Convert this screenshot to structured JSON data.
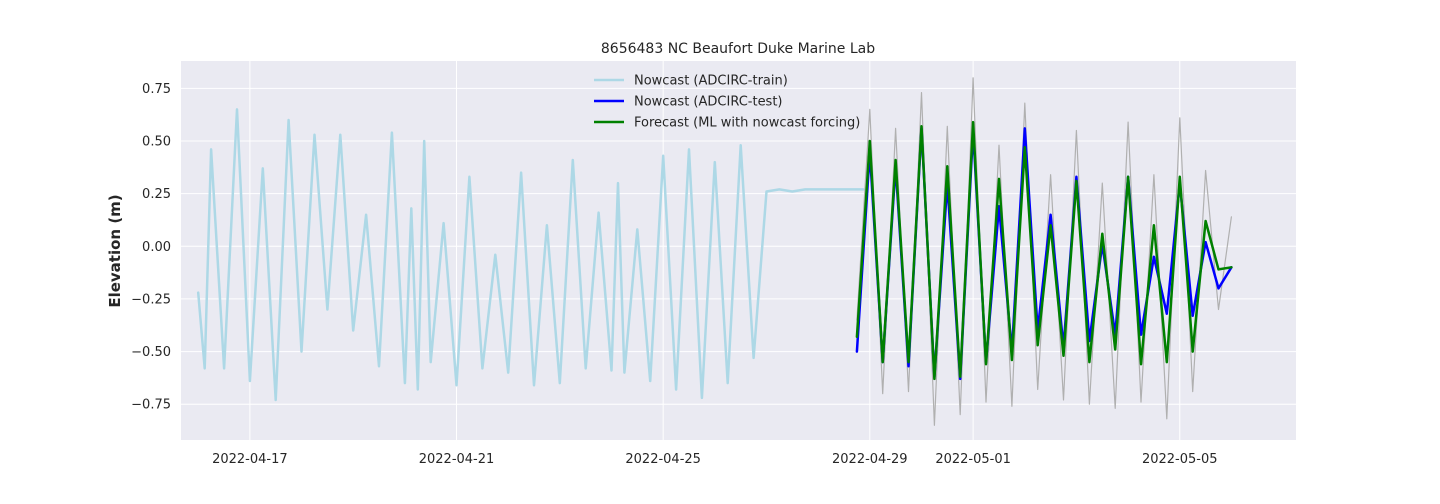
{
  "chart_data": {
    "type": "line",
    "title": "8656483 NC Beaufort Duke Marine Lab",
    "xlabel": "",
    "ylabel": "Elevation (m)",
    "xlim": [
      "2022-04-15 16:00",
      "2022-05-07 06:00"
    ],
    "ylim": [
      -0.92,
      0.88
    ],
    "x_ticks": [
      "2022-04-17",
      "2022-04-21",
      "2022-04-25",
      "2022-04-29",
      "2022-05-01",
      "2022-05-05"
    ],
    "y_ticks": [
      -0.75,
      -0.5,
      -0.25,
      0.0,
      0.25,
      0.5,
      0.75
    ],
    "y_tick_labels": [
      "−0.75",
      "−0.50",
      "−0.25",
      "0.00",
      "0.25",
      "0.50",
      "0.75"
    ],
    "grid": true,
    "legend_position": "top-center",
    "series": [
      {
        "name": "Nowcast (ADCIRC-train)",
        "color": "#add8e6",
        "width": 2.5,
        "x": [
          "2022-04-16 00:00",
          "2022-04-16 03:00",
          "2022-04-16 06:00",
          "2022-04-16 12:00",
          "2022-04-16 18:00",
          "2022-04-17 00:00",
          "2022-04-17 06:00",
          "2022-04-17 12:00",
          "2022-04-17 18:00",
          "2022-04-18 00:00",
          "2022-04-18 06:00",
          "2022-04-18 12:00",
          "2022-04-18 18:00",
          "2022-04-19 00:00",
          "2022-04-19 06:00",
          "2022-04-19 12:00",
          "2022-04-19 18:00",
          "2022-04-20 00:00",
          "2022-04-20 03:00",
          "2022-04-20 06:00",
          "2022-04-20 09:00",
          "2022-04-20 12:00",
          "2022-04-20 18:00",
          "2022-04-21 00:00",
          "2022-04-21 06:00",
          "2022-04-21 12:00",
          "2022-04-21 18:00",
          "2022-04-22 00:00",
          "2022-04-22 06:00",
          "2022-04-22 12:00",
          "2022-04-22 18:00",
          "2022-04-23 00:00",
          "2022-04-23 06:00",
          "2022-04-23 12:00",
          "2022-04-23 18:00",
          "2022-04-24 00:00",
          "2022-04-24 03:00",
          "2022-04-24 06:00",
          "2022-04-24 12:00",
          "2022-04-24 18:00",
          "2022-04-25 00:00",
          "2022-04-25 06:00",
          "2022-04-25 12:00",
          "2022-04-25 18:00",
          "2022-04-26 00:00",
          "2022-04-26 06:00",
          "2022-04-26 12:00",
          "2022-04-26 18:00",
          "2022-04-27 00:00",
          "2022-04-27 06:00",
          "2022-04-27 12:00",
          "2022-04-27 18:00",
          "2022-04-28 00:00",
          "2022-04-28 06:00",
          "2022-04-28 12:00",
          "2022-04-28 18:00",
          "2022-04-28 21:00"
        ],
        "y": [
          -0.22,
          -0.58,
          0.46,
          -0.58,
          0.65,
          -0.64,
          0.37,
          -0.73,
          0.6,
          -0.5,
          0.53,
          -0.3,
          0.53,
          -0.4,
          0.15,
          -0.57,
          0.54,
          -0.65,
          0.18,
          -0.68,
          0.5,
          -0.55,
          0.11,
          -0.66,
          0.33,
          -0.58,
          -0.04,
          -0.6,
          0.35,
          -0.66,
          0.1,
          -0.65,
          0.41,
          -0.58,
          0.16,
          -0.59,
          0.3,
          -0.6,
          0.08,
          -0.64,
          0.43,
          -0.68,
          0.46,
          -0.72,
          0.4,
          -0.65,
          0.48,
          -0.53,
          0.26,
          0.27,
          0.26,
          0.27,
          0.27,
          0.27,
          0.27,
          0.27,
          0.27
        ]
      },
      {
        "name": "",
        "color": "#b0b0b0",
        "width": 1.2,
        "x": [
          "2022-04-28 18:00",
          "2022-04-29 00:00",
          "2022-04-29 06:00",
          "2022-04-29 12:00",
          "2022-04-29 18:00",
          "2022-04-30 00:00",
          "2022-04-30 06:00",
          "2022-04-30 12:00",
          "2022-04-30 18:00",
          "2022-05-01 00:00",
          "2022-05-01 06:00",
          "2022-05-01 12:00",
          "2022-05-01 18:00",
          "2022-05-02 00:00",
          "2022-05-02 06:00",
          "2022-05-02 12:00",
          "2022-05-02 18:00",
          "2022-05-03 00:00",
          "2022-05-03 06:00",
          "2022-05-03 12:00",
          "2022-05-03 18:00",
          "2022-05-04 00:00",
          "2022-05-04 06:00",
          "2022-05-04 12:00",
          "2022-05-04 18:00",
          "2022-05-05 00:00",
          "2022-05-05 06:00",
          "2022-05-05 12:00",
          "2022-05-05 18:00",
          "2022-05-06 00:00"
        ],
        "y": [
          -0.35,
          0.65,
          -0.7,
          0.56,
          -0.69,
          0.73,
          -0.85,
          0.57,
          -0.8,
          0.8,
          -0.74,
          0.48,
          -0.76,
          0.68,
          -0.68,
          0.34,
          -0.73,
          0.55,
          -0.75,
          0.3,
          -0.77,
          0.59,
          -0.74,
          0.34,
          -0.82,
          0.61,
          -0.69,
          0.36,
          -0.3,
          0.14
        ]
      },
      {
        "name": "Nowcast (ADCIRC-test)",
        "color": "#0000ff",
        "width": 2.5,
        "x": [
          "2022-04-28 18:00",
          "2022-04-29 00:00",
          "2022-04-29 06:00",
          "2022-04-29 12:00",
          "2022-04-29 18:00",
          "2022-04-30 00:00",
          "2022-04-30 06:00",
          "2022-04-30 12:00",
          "2022-04-30 18:00",
          "2022-05-01 00:00",
          "2022-05-01 06:00",
          "2022-05-01 12:00",
          "2022-05-01 18:00",
          "2022-05-02 00:00",
          "2022-05-02 06:00",
          "2022-05-02 12:00",
          "2022-05-02 18:00",
          "2022-05-03 00:00",
          "2022-05-03 06:00",
          "2022-05-03 12:00",
          "2022-05-03 18:00",
          "2022-05-04 00:00",
          "2022-05-04 06:00",
          "2022-05-04 12:00",
          "2022-05-04 18:00",
          "2022-05-05 00:00",
          "2022-05-05 06:00",
          "2022-05-05 12:00",
          "2022-05-05 18:00",
          "2022-05-06 00:00"
        ],
        "y": [
          -0.5,
          0.45,
          -0.55,
          0.38,
          -0.57,
          0.56,
          -0.62,
          0.3,
          -0.63,
          0.55,
          -0.55,
          0.19,
          -0.5,
          0.56,
          -0.4,
          0.15,
          -0.48,
          0.33,
          -0.45,
          0.01,
          -0.42,
          0.33,
          -0.42,
          -0.05,
          -0.32,
          0.3,
          -0.33,
          0.02,
          -0.2,
          -0.1
        ]
      },
      {
        "name": "Forecast (ML with nowcast forcing)",
        "color": "#008000",
        "width": 2.5,
        "x": [
          "2022-04-28 18:00",
          "2022-04-29 00:00",
          "2022-04-29 06:00",
          "2022-04-29 12:00",
          "2022-04-29 18:00",
          "2022-04-30 00:00",
          "2022-04-30 06:00",
          "2022-04-30 12:00",
          "2022-04-30 18:00",
          "2022-05-01 00:00",
          "2022-05-01 06:00",
          "2022-05-01 12:00",
          "2022-05-01 18:00",
          "2022-05-02 00:00",
          "2022-05-02 06:00",
          "2022-05-02 12:00",
          "2022-05-02 18:00",
          "2022-05-03 00:00",
          "2022-05-03 06:00",
          "2022-05-03 12:00",
          "2022-05-03 18:00",
          "2022-05-04 00:00",
          "2022-05-04 06:00",
          "2022-05-04 12:00",
          "2022-05-04 18:00",
          "2022-05-05 00:00",
          "2022-05-05 06:00",
          "2022-05-05 12:00",
          "2022-05-05 18:00",
          "2022-05-06 00:00"
        ],
        "y": [
          -0.43,
          0.5,
          -0.55,
          0.41,
          -0.55,
          0.57,
          -0.63,
          0.38,
          -0.62,
          0.59,
          -0.56,
          0.32,
          -0.54,
          0.47,
          -0.47,
          0.1,
          -0.52,
          0.31,
          -0.55,
          0.06,
          -0.49,
          0.33,
          -0.56,
          0.1,
          -0.55,
          0.33,
          -0.5,
          0.12,
          -0.11,
          -0.1
        ]
      }
    ]
  }
}
